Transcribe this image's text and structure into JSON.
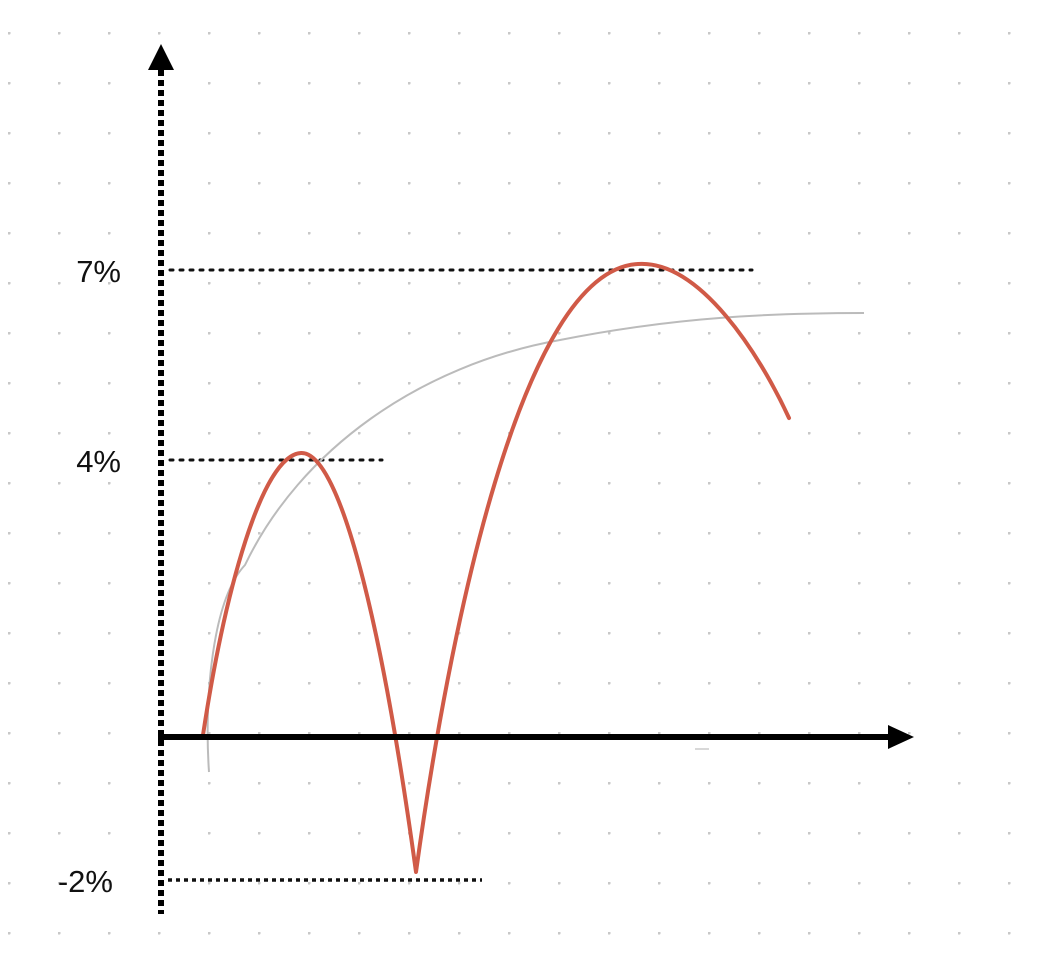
{
  "chart_data": {
    "type": "line",
    "ylabel": "",
    "xlabel": "",
    "y_tick_labels": [
      "7%",
      "4%",
      "-2%"
    ],
    "y_ticks": [
      7,
      4,
      -2
    ],
    "ylim": [
      -2.8,
      10.5
    ],
    "reference_lines": [
      {
        "label": "7%",
        "value": 7
      },
      {
        "label": "4%",
        "value": 4
      },
      {
        "label": "-2%",
        "value": -2
      }
    ],
    "series": [
      {
        "color": "#d05a47",
        "style": "solid",
        "shape": "hand-drawn curve with peaks at 4% and 7% and a dip to -2%"
      },
      {
        "color": "#bbbbbb",
        "style": "thin",
        "shape": "smooth concave curve levelling off just below 7%"
      }
    ],
    "background": "dot-grid",
    "grid": true
  },
  "colors": {
    "axis": "#000000",
    "primary_curve": "#d05a47",
    "secondary_curve": "#bbbbbb",
    "grid_dots": "#c8c8c8",
    "guide_lines": "#111111"
  }
}
